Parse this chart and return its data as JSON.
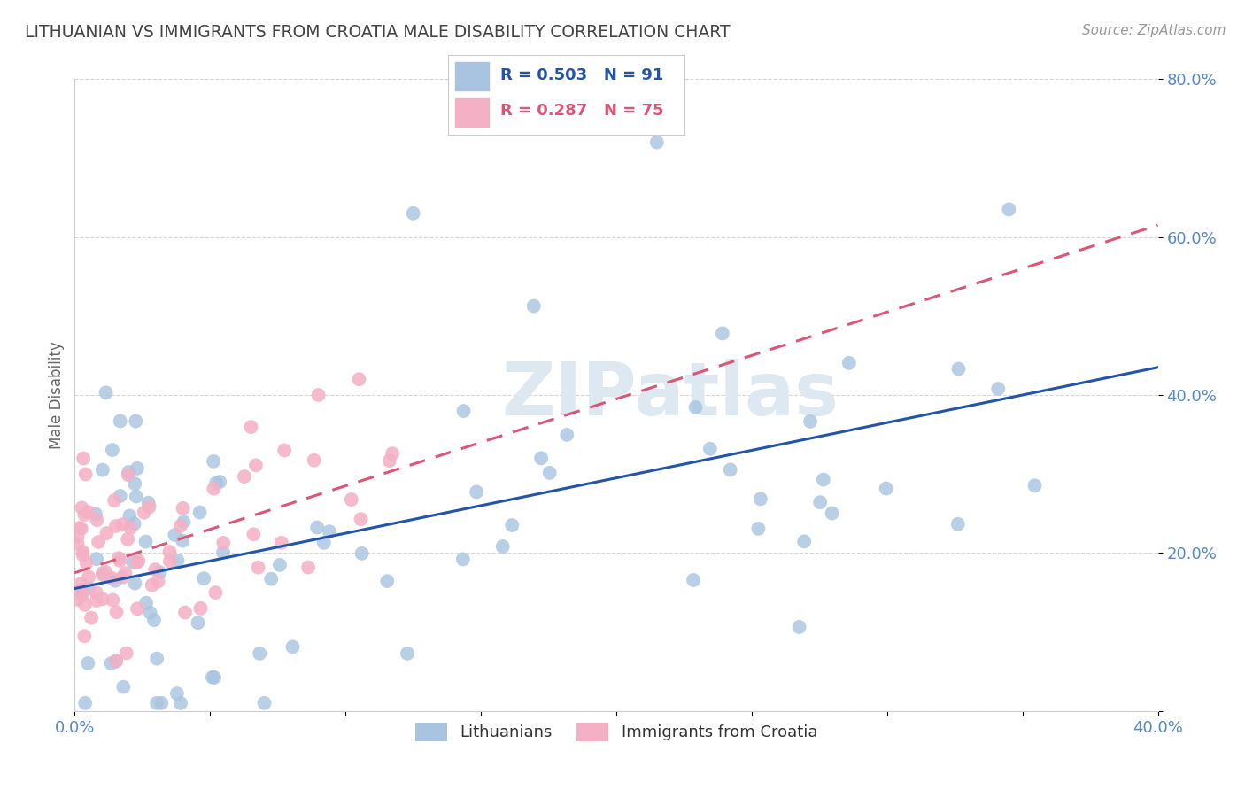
{
  "title": "LITHUANIAN VS IMMIGRANTS FROM CROATIA MALE DISABILITY CORRELATION CHART",
  "source": "Source: ZipAtlas.com",
  "ylabel": "Male Disability",
  "xlim": [
    0.0,
    0.4
  ],
  "ylim": [
    0.0,
    0.8
  ],
  "xticks": [
    0.0,
    0.05,
    0.1,
    0.15,
    0.2,
    0.25,
    0.3,
    0.35,
    0.4
  ],
  "yticks": [
    0.0,
    0.2,
    0.4,
    0.6,
    0.8
  ],
  "blue_color": "#a8c4e0",
  "pink_color": "#f4b0c4",
  "blue_line_color": "#2255aa",
  "pink_line_color": "#dd5577",
  "R_blue": 0.503,
  "N_blue": 91,
  "R_pink": 0.287,
  "N_pink": 75,
  "background_color": "#ffffff",
  "grid_color": "#cccccc",
  "title_color": "#444444",
  "tick_color": "#5588cc",
  "legend_label_blue": "Lithuanians",
  "legend_label_pink": "Immigrants from Croatia",
  "watermark": "ZIPatlas",
  "blue_line_intercept": 0.155,
  "blue_line_slope": 0.7,
  "pink_line_intercept": 0.175,
  "pink_line_slope": 1.1
}
